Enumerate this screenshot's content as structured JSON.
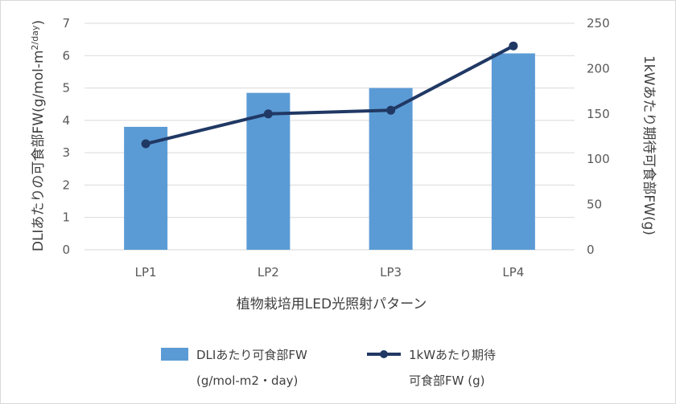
{
  "chart_data": {
    "type": "bar+line",
    "categories": [
      "LP1",
      "LP2",
      "LP3",
      "LP4"
    ],
    "series": [
      {
        "name": "DLIあたり可食部FW",
        "name_line2": "(g/mol-m2・day)",
        "type": "bar",
        "axis": "left",
        "values": [
          3.8,
          4.85,
          5.0,
          6.07
        ]
      },
      {
        "name": "1kWあたり期待",
        "name_line2": "可食部FW (g)",
        "type": "line",
        "axis": "right",
        "values": [
          117,
          150,
          154,
          225
        ]
      }
    ],
    "xlabel": "植物栽培用LED光照射パターン",
    "ylabel_left": "DLIあたりの可食部FW(g/mol-m",
    "ylabel_left_sup": "2/day",
    "ylabel_left_end": ")",
    "ylabel_right": "1kWあたり期待可食部FW(g)",
    "ylim_left": [
      0,
      7
    ],
    "yticks_left": [
      "0",
      "1",
      "2",
      "3",
      "4",
      "5",
      "6",
      "7"
    ],
    "ylim_right": [
      0,
      250
    ],
    "yticks_right": [
      "0",
      "50",
      "100",
      "150",
      "200",
      "250"
    ],
    "grid": true,
    "legend_position": "bottom",
    "colors": {
      "bar": "#5b9bd5",
      "line": "#203864",
      "grid": "#d9d9d9"
    }
  }
}
